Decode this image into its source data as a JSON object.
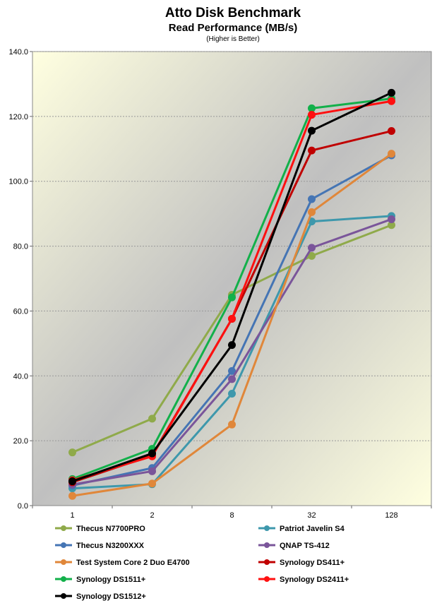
{
  "chart_data": {
    "type": "line",
    "title": "Atto Disk Benchmark",
    "subtitle": "Read Performance (MB/s)",
    "note": "(Higher is Better)",
    "xlabel": "",
    "ylabel": "",
    "categories": [
      "1",
      "2",
      "8",
      "32",
      "128"
    ],
    "ylim": [
      0,
      140
    ],
    "yticks": [
      "0.0",
      "20.0",
      "40.0",
      "60.0",
      "80.0",
      "100.0",
      "120.0",
      "140.0"
    ],
    "grid": true,
    "legend_position": "bottom",
    "series": [
      {
        "name": "Thecus N7700PRO",
        "color": "#8faa4a",
        "values": [
          16.4,
          26.8,
          65.0,
          77.0,
          86.5
        ]
      },
      {
        "name": "Patriot Javelin S4",
        "color": "#3e98ac",
        "values": [
          5.3,
          6.6,
          34.5,
          87.6,
          89.3
        ]
      },
      {
        "name": "Thecus N3200XXX",
        "color": "#4575b4",
        "values": [
          6.2,
          11.6,
          41.5,
          94.5,
          108.0
        ]
      },
      {
        "name": "QNAP TS-412",
        "color": "#7a559a",
        "values": [
          6.5,
          10.6,
          39.0,
          79.5,
          88.3
        ]
      },
      {
        "name": "Test System Core 2 Duo E4700",
        "color": "#e0873a",
        "values": [
          3.0,
          6.8,
          25.0,
          90.5,
          108.5
        ]
      },
      {
        "name": "Synology DS411+",
        "color": "#c00000",
        "values": [
          7.2,
          15.5,
          57.6,
          109.5,
          115.5
        ]
      },
      {
        "name": "Synology DS1511+",
        "color": "#12b04a",
        "values": [
          8.2,
          17.5,
          64.2,
          122.5,
          125.5
        ]
      },
      {
        "name": "Synology DS2411+",
        "color": "#ff1010",
        "values": [
          7.8,
          15.2,
          57.6,
          120.5,
          124.7
        ]
      },
      {
        "name": "Synology DS1512+",
        "color": "#000000",
        "values": [
          7.5,
          16.1,
          49.5,
          115.6,
          127.3
        ]
      }
    ]
  }
}
